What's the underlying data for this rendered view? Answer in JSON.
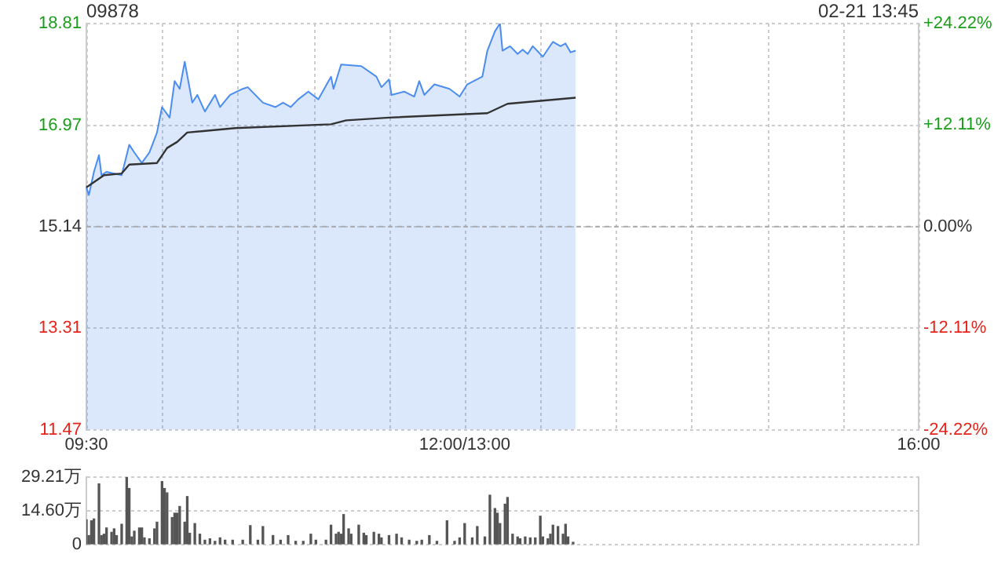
{
  "chart_data": {
    "type": "area",
    "title": "09878",
    "annotations": [
      "02-21 13:45"
    ],
    "categories": [
      "09:30",
      null,
      null,
      null,
      null,
      null,
      null,
      null,
      null,
      null,
      null,
      null,
      null,
      null,
      null,
      null,
      null,
      null,
      null,
      null,
      null,
      null,
      null,
      null,
      null,
      null,
      null,
      null,
      null,
      null,
      null,
      null,
      null,
      null,
      null,
      null,
      null,
      null,
      null,
      null,
      null,
      null,
      null,
      null,
      null,
      null,
      null,
      null,
      null,
      null,
      null,
      null,
      null,
      null,
      null,
      null,
      null,
      null,
      null,
      null,
      null,
      null,
      null,
      null,
      null,
      null,
      null,
      null,
      null,
      null,
      null,
      null,
      null,
      null,
      null,
      null,
      null,
      null,
      null,
      null,
      null,
      null,
      null,
      null,
      null,
      null,
      null,
      null,
      null,
      null,
      null,
      null,
      null,
      null,
      null,
      null,
      null,
      null,
      null,
      null,
      null,
      null,
      null,
      null,
      null,
      null,
      null,
      null,
      null,
      null,
      null,
      null,
      null,
      null,
      null,
      null,
      null,
      null,
      null,
      null,
      null,
      null,
      null,
      null,
      null,
      null,
      null,
      null,
      null,
      null,
      null,
      null,
      null,
      null,
      null,
      null,
      null,
      null,
      null,
      null,
      null,
      null,
      null,
      null,
      null,
      null,
      null,
      null,
      null,
      null,
      "12:00/13:00",
      null,
      null,
      null,
      null,
      null,
      null,
      null,
      null,
      null,
      null,
      null,
      null,
      null,
      null,
      null,
      null,
      null,
      null,
      null,
      null,
      null,
      null,
      null,
      null,
      null,
      null,
      null,
      null,
      null,
      null,
      null,
      null,
      null,
      null,
      null,
      null,
      null,
      null,
      null,
      null,
      null,
      null,
      null,
      null,
      null,
      null,
      null,
      null,
      null,
      null,
      null,
      null,
      null,
      null,
      null,
      null,
      null,
      null,
      null,
      null,
      null,
      null,
      null,
      null,
      null,
      null,
      null,
      null,
      null,
      null,
      null,
      null,
      null,
      null,
      null,
      null,
      null,
      null,
      null,
      null,
      null,
      null,
      null,
      null,
      null,
      null,
      null,
      null,
      null,
      null,
      null,
      null,
      null,
      null,
      null,
      null,
      null,
      null,
      null,
      null,
      null,
      null,
      null,
      null,
      null,
      null,
      null,
      null,
      null,
      null,
      null,
      null,
      null,
      null,
      null,
      null,
      null,
      null,
      null,
      null,
      null,
      null,
      null,
      null,
      null,
      null,
      null,
      null,
      null,
      null,
      null,
      null,
      null,
      null,
      null,
      null,
      null,
      null,
      null,
      null,
      null,
      null,
      null,
      null,
      null,
      null,
      null,
      null,
      null,
      null,
      null,
      null,
      null,
      null,
      null,
      null,
      null,
      null,
      null,
      null,
      null,
      null,
      null,
      null,
      null,
      null,
      null,
      null,
      null,
      null,
      null,
      null,
      null,
      null,
      null,
      null,
      null,
      null,
      null,
      "16:00"
    ],
    "ylim": [
      11.47,
      18.81
    ],
    "yticks": [
      11.47,
      13.31,
      15.14,
      16.97,
      18.81
    ],
    "y2lim": [
      -24.22,
      24.22
    ],
    "y2ticks": [
      {
        "value": -24.22,
        "label": "-24.22%"
      },
      {
        "value": -12.11,
        "label": "-12.11%"
      },
      {
        "value": 0,
        "label": "0.00%"
      },
      {
        "value": 12.11,
        "label": "+12.11%"
      },
      {
        "value": 24.22,
        "label": "+24.22%"
      }
    ],
    "y3lim": [
      0,
      29.21
    ],
    "y3ticks": [
      0,
      {
        "value": 14.6,
        "label": "14.60万"
      },
      {
        "value": 29.21,
        "label": "29.21万"
      }
    ],
    "grid": true,
    "legend": false,
    "ref_lines": [
      {
        "axis": "y",
        "value": 15.14
      }
    ],
    "series": [
      {
        "color": "#4a8cf0",
        "values": [
          15.85,
          15.71,
          null,
          16.13,
          null,
          16.43,
          16.07,
          null,
          16.13,
          null,
          null,
          null,
          null,
          null,
          16.07,
          null,
          null,
          16.62,
          null,
          16.48,
          null,
          null,
          16.29,
          null,
          null,
          16.48,
          null,
          null,
          16.84,
          null,
          17.3,
          null,
          null,
          17.11,
          null,
          17.77,
          null,
          17.63,
          null,
          18.12,
          null,
          null,
          17.38,
          null,
          17.52,
          null,
          null,
          17.22,
          null,
          null,
          null,
          17.52,
          null,
          17.3,
          null,
          null,
          null,
          17.52,
          null,
          null,
          null,
          null,
          17.63,
          null,
          17.66,
          null,
          null,
          null,
          null,
          null,
          17.38,
          null,
          null,
          null,
          null,
          17.3,
          null,
          null,
          17.38,
          null,
          null,
          17.3,
          null,
          null,
          17.44,
          null,
          null,
          null,
          17.58,
          null,
          null,
          null,
          17.44,
          null,
          null,
          null,
          null,
          17.85,
          17.63,
          null,
          null,
          18.07,
          null,
          null,
          null,
          null,
          null,
          null,
          null,
          18.04,
          null,
          null,
          null,
          null,
          null,
          17.85,
          null,
          17.66,
          null,
          null,
          17.8,
          17.52,
          null,
          null,
          null,
          null,
          17.58,
          null,
          null,
          null,
          17.49,
          null,
          17.77,
          null,
          17.52,
          null,
          null,
          null,
          17.71,
          null,
          null,
          null,
          null,
          null,
          17.63,
          null,
          null,
          null,
          17.49,
          null,
          null,
          17.71,
          null,
          null,
          null,
          null,
          null,
          17.85,
          null,
          18.32,
          null,
          null,
          18.67,
          null,
          18.81,
          18.32,
          null,
          null,
          18.4,
          null,
          null,
          18.26,
          null,
          18.34,
          null,
          18.26,
          null,
          18.4,
          null,
          null,
          null,
          18.21,
          null,
          null,
          null,
          18.48,
          null,
          null,
          18.4,
          null,
          18.45,
          null,
          18.29,
          null,
          18.32,
          null,
          null,
          null,
          null,
          null,
          null,
          null,
          null,
          null,
          null,
          null,
          null,
          null,
          null,
          null,
          null,
          null,
          null,
          null,
          null,
          null,
          null,
          null,
          null,
          null,
          null,
          null,
          null,
          null,
          null,
          null,
          null,
          null,
          null,
          null,
          null,
          null,
          null,
          null,
          null,
          null,
          null,
          null,
          null,
          null,
          null,
          null,
          null,
          null,
          null,
          null,
          null,
          null,
          null,
          null,
          null,
          null,
          null,
          null,
          null,
          null,
          null,
          null,
          null,
          null,
          null,
          null,
          null,
          null,
          null,
          null,
          null,
          null,
          null,
          null,
          null,
          null,
          null,
          null,
          null,
          null,
          null,
          null,
          null,
          null,
          null,
          null,
          null,
          null,
          null,
          null,
          null,
          null,
          null,
          null,
          null,
          null,
          null,
          null,
          null,
          null,
          null,
          null,
          null,
          null,
          null,
          null,
          null,
          null,
          null,
          null,
          null,
          null,
          null,
          null,
          null,
          null,
          null,
          null,
          null,
          null,
          null,
          null,
          null,
          null,
          null,
          null,
          null,
          null,
          null,
          null,
          null,
          null,
          null,
          null,
          null
        ]
      },
      {
        "type": "line",
        "color": "#333333",
        "values": [
          15.85,
          null,
          null,
          null,
          null,
          null,
          null,
          16.07,
          null,
          null,
          null,
          null,
          null,
          null,
          16.1,
          null,
          null,
          16.26,
          null,
          null,
          null,
          null,
          null,
          null,
          null,
          null,
          null,
          null,
          16.29,
          null,
          null,
          null,
          16.56,
          null,
          null,
          null,
          16.67,
          null,
          null,
          null,
          16.84,
          null,
          null,
          null,
          null,
          null,
          null,
          null,
          null,
          null,
          null,
          null,
          null,
          null,
          null,
          null,
          null,
          null,
          null,
          16.92,
          null,
          null,
          null,
          null,
          null,
          null,
          null,
          null,
          null,
          null,
          null,
          null,
          null,
          null,
          null,
          null,
          null,
          null,
          null,
          null,
          null,
          null,
          null,
          null,
          null,
          null,
          null,
          null,
          null,
          null,
          null,
          null,
          null,
          null,
          null,
          null,
          null,
          16.99,
          null,
          null,
          null,
          null,
          null,
          17.06,
          null,
          null,
          null,
          null,
          null,
          null,
          null,
          null,
          null,
          null,
          null,
          null,
          null,
          null,
          null,
          null,
          17.11,
          null,
          null,
          null,
          null,
          null,
          null,
          null,
          null,
          null,
          null,
          null,
          null,
          null,
          null,
          null,
          null,
          null,
          null,
          null,
          null,
          null,
          null,
          null,
          null,
          null,
          null,
          null,
          null,
          null,
          null,
          null,
          null,
          null,
          null,
          null,
          null,
          null,
          null,
          17.19,
          null,
          null,
          null,
          null,
          null,
          null,
          null,
          17.36,
          null,
          null,
          null,
          null,
          null,
          null,
          null,
          null,
          null,
          null,
          null,
          null,
          null,
          null,
          null,
          null,
          null,
          null,
          null,
          null,
          null,
          null,
          null,
          null,
          null,
          null,
          17.47,
          null,
          null,
          null,
          null,
          null,
          null,
          null,
          null,
          null,
          null,
          null,
          null,
          null,
          null,
          null,
          null,
          null,
          null,
          null,
          null,
          null,
          null,
          null,
          null,
          null,
          null,
          null,
          null,
          null,
          null,
          null,
          null,
          null,
          null,
          null,
          null,
          null,
          null,
          null,
          null,
          null,
          null,
          null,
          null,
          null,
          null,
          null,
          null,
          null,
          null,
          null,
          null,
          null,
          null,
          null,
          null,
          null,
          null,
          null,
          null,
          null,
          null,
          null,
          null,
          null,
          null,
          null,
          null,
          null,
          null,
          null,
          null,
          null,
          null,
          null,
          null,
          null,
          null,
          null,
          null,
          null,
          null,
          null,
          null,
          null,
          null,
          null,
          null,
          null,
          null,
          null,
          null,
          null,
          null,
          null,
          null,
          null,
          null,
          null,
          null,
          null,
          null,
          null,
          null,
          null,
          null,
          null,
          null,
          null,
          null,
          null,
          null,
          null,
          null,
          null,
          null,
          null,
          null,
          null,
          null,
          null,
          null,
          null,
          null,
          null,
          null,
          null,
          null,
          null,
          null,
          null,
          null,
          null,
          null,
          null,
          null
        ]
      },
      {
        "type": "bar",
        "axis": "y3",
        "color": "#555555",
        "values": [
          10.7,
          3.9,
          10.3,
          11.1,
          null,
          26.3,
          3.9,
          4.5,
          7.2,
          null,
          5.3,
          6.8,
          3.9,
          null,
          8.8,
          null,
          29.2,
          24.3,
          3.3,
          5.8,
          null,
          7.2,
          7.2,
          2.9,
          null,
          2.5,
          null,
          6.8,
          9.7,
          null,
          27.3,
          24.3,
          22.4,
          null,
          11.7,
          13.6,
          13.6,
          16.5,
          null,
          9.7,
          20.8,
          4.9,
          null,
          9.1,
          null,
          4.5,
          null,
          1.9,
          null,
          2.5,
          null,
          1.4,
          null,
          2.9,
          null,
          1.9,
          null,
          null,
          1.9,
          null,
          null,
          null,
          1.9,
          null,
          null,
          8.2,
          null,
          null,
          1.9,
          null,
          7.8,
          null,
          null,
          null,
          3.9,
          null,
          null,
          1.9,
          null,
          null,
          3.9,
          null,
          null,
          1.4,
          null,
          null,
          1.4,
          null,
          null,
          4.5,
          null,
          1.9,
          null,
          null,
          null,
          1.9,
          null,
          8.4,
          null,
          4.5,
          5.3,
          4.5,
          13,
          null,
          6.8,
          4.5,
          null,
          null,
          8.4,
          null,
          4.9,
          3.9,
          null,
          null,
          5.3,
          null,
          4.5,
          2.9,
          null,
          null,
          3.9,
          null,
          null,
          4.5,
          null,
          2.9,
          null,
          null,
          1.9,
          null,
          null,
          1.4,
          null,
          1.9,
          null,
          null,
          3.9,
          null,
          null,
          1.4,
          null,
          null,
          null,
          10.3,
          null,
          null,
          1.4,
          null,
          2.9,
          null,
          9.1,
          null,
          null,
          2.9,
          null,
          7.8,
          null,
          null,
          3.3,
          null,
          21.4,
          null,
          15.6,
          13.6,
          9.1,
          null,
          17.5,
          20.4,
          null,
          4.5,
          null,
          3.3,
          2.5,
          null,
          3.3,
          null,
          2.9,
          null,
          2.9,
          null,
          12.3,
          3.3,
          null,
          2.5,
          4.5,
          8.4,
          null,
          7.8,
          null,
          4.5,
          8.8,
          3.3,
          null,
          1,
          null,
          null,
          null,
          null,
          null,
          null,
          null,
          null,
          null,
          null,
          null,
          null,
          null,
          null,
          null,
          null,
          null,
          null,
          null,
          null,
          null,
          null,
          null,
          null,
          null,
          null,
          null,
          null,
          null,
          null,
          null,
          null,
          null,
          null,
          null,
          null,
          null,
          null,
          null,
          null,
          null,
          null,
          null,
          null,
          null,
          null,
          null,
          null,
          null,
          null,
          null,
          null,
          null,
          null,
          null,
          null,
          null,
          null,
          null,
          null,
          null,
          null,
          null,
          null,
          null,
          null,
          null,
          null,
          null,
          null,
          null,
          null,
          null,
          null,
          null,
          null,
          null,
          null,
          null,
          null,
          null,
          null,
          null,
          null,
          null,
          null,
          null,
          null,
          null,
          null,
          null,
          null,
          null,
          null,
          null,
          null,
          null,
          null,
          null,
          null,
          null,
          null,
          null,
          null,
          null,
          null,
          null,
          null,
          null,
          null,
          null,
          null,
          null,
          null,
          null,
          null,
          null,
          null,
          null,
          null,
          null,
          null,
          null,
          null,
          null,
          null,
          null,
          null,
          null,
          null,
          null,
          null,
          null,
          null,
          null,
          null,
          null
        ]
      }
    ]
  }
}
